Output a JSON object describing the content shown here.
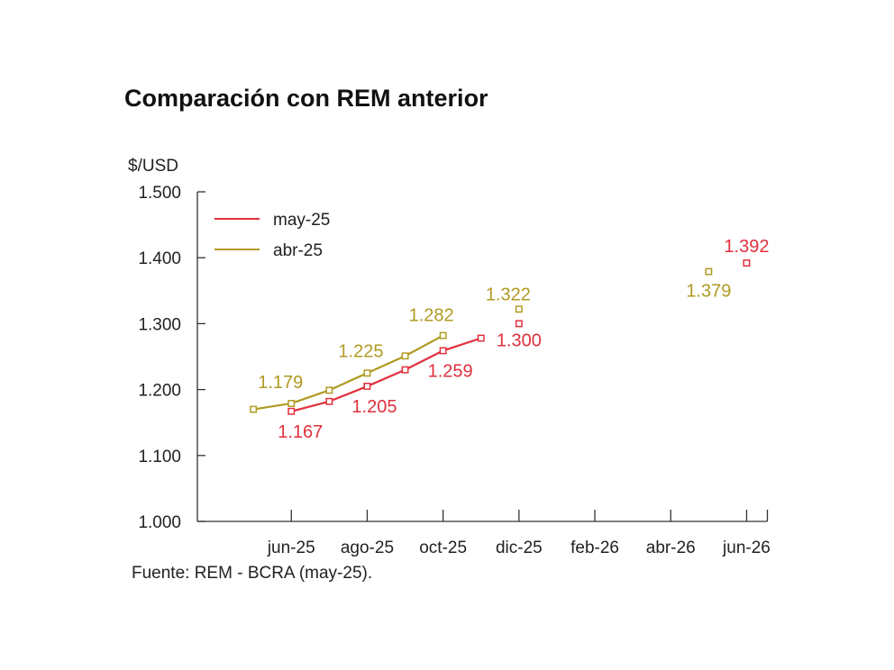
{
  "title": "Comparación con REM anterior",
  "source": "Fuente: REM - BCRA (may-25).",
  "chart_data": {
    "type": "line",
    "title": "Comparación con REM anterior",
    "ylabel": "$/USD",
    "ylim": [
      1000,
      1500
    ],
    "yticks": [
      1000,
      1100,
      1200,
      1300,
      1400,
      1500
    ],
    "ytick_labels": [
      "1.000",
      "1.100",
      "1.200",
      "1.300",
      "1.400",
      "1.500"
    ],
    "xlim": [
      "2025-04",
      "2026-07"
    ],
    "xticks": [
      "2025-06",
      "2025-08",
      "2025-10",
      "2025-12",
      "2026-02",
      "2026-04",
      "2026-06"
    ],
    "xtick_labels": [
      "jun-25",
      "ago-25",
      "oct-25",
      "dic-25",
      "feb-26",
      "abr-26",
      "jun-26"
    ],
    "legend": "top-left",
    "grid": false,
    "series": [
      {
        "name": "may-25",
        "color": "#e0303d",
        "line": [
          {
            "x": "2025-06",
            "y": 1167
          },
          {
            "x": "2025-07",
            "y": 1182
          },
          {
            "x": "2025-08",
            "y": 1205
          },
          {
            "x": "2025-09",
            "y": 1230
          },
          {
            "x": "2025-10",
            "y": 1259
          },
          {
            "x": "2025-11",
            "y": 1278
          }
        ],
        "points": [
          {
            "x": "2025-12",
            "y": 1300
          },
          {
            "x": "2026-06",
            "y": 1392
          }
        ],
        "labels": [
          {
            "x": "2025-06",
            "y": 1167,
            "text": "1.167"
          },
          {
            "x": "2025-08",
            "y": 1205,
            "text": "1.205"
          },
          {
            "x": "2025-10",
            "y": 1259,
            "text": "1.259"
          },
          {
            "x": "2025-12",
            "y": 1300,
            "text": "1.300"
          },
          {
            "x": "2026-06",
            "y": 1392,
            "text": "1.392"
          }
        ]
      },
      {
        "name": "abr-25",
        "color": "#b09a22",
        "line": [
          {
            "x": "2025-05",
            "y": 1170
          },
          {
            "x": "2025-06",
            "y": 1179
          },
          {
            "x": "2025-07",
            "y": 1199
          },
          {
            "x": "2025-08",
            "y": 1225
          },
          {
            "x": "2025-09",
            "y": 1251
          },
          {
            "x": "2025-10",
            "y": 1282
          }
        ],
        "points": [
          {
            "x": "2025-12",
            "y": 1322
          },
          {
            "x": "2026-05",
            "y": 1379
          }
        ],
        "labels": [
          {
            "x": "2025-06",
            "y": 1179,
            "text": "1.179"
          },
          {
            "x": "2025-08",
            "y": 1225,
            "text": "1.225"
          },
          {
            "x": "2025-10",
            "y": 1282,
            "text": "1.282"
          },
          {
            "x": "2025-12",
            "y": 1322,
            "text": "1.322"
          },
          {
            "x": "2026-05",
            "y": 1379,
            "text": "1.379"
          }
        ]
      }
    ]
  }
}
